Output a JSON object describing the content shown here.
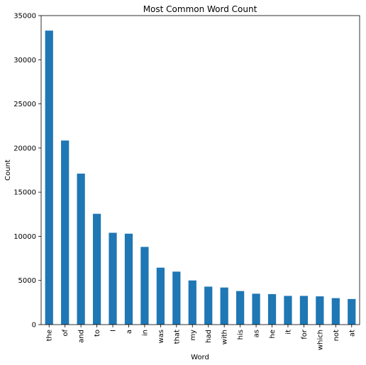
{
  "chart_data": {
    "type": "bar",
    "title": "Most Common Word Count",
    "xlabel": "Word",
    "ylabel": "Count",
    "categories": [
      "the",
      "of",
      "and",
      "to",
      "I",
      "a",
      "in",
      "was",
      "that",
      "my",
      "had",
      "with",
      "his",
      "as",
      "he",
      "it",
      "for",
      "which",
      "not",
      "at"
    ],
    "values": [
      33300,
      20850,
      17100,
      12550,
      10400,
      10300,
      8800,
      6450,
      6000,
      5000,
      4300,
      4200,
      3800,
      3500,
      3450,
      3250,
      3250,
      3200,
      3000,
      2900
    ],
    "ylim": [
      0,
      35000
    ],
    "yticks": [
      0,
      5000,
      10000,
      15000,
      20000,
      25000,
      30000,
      35000
    ],
    "bar_color": "#1f77b4",
    "grid": false,
    "legend": false
  }
}
